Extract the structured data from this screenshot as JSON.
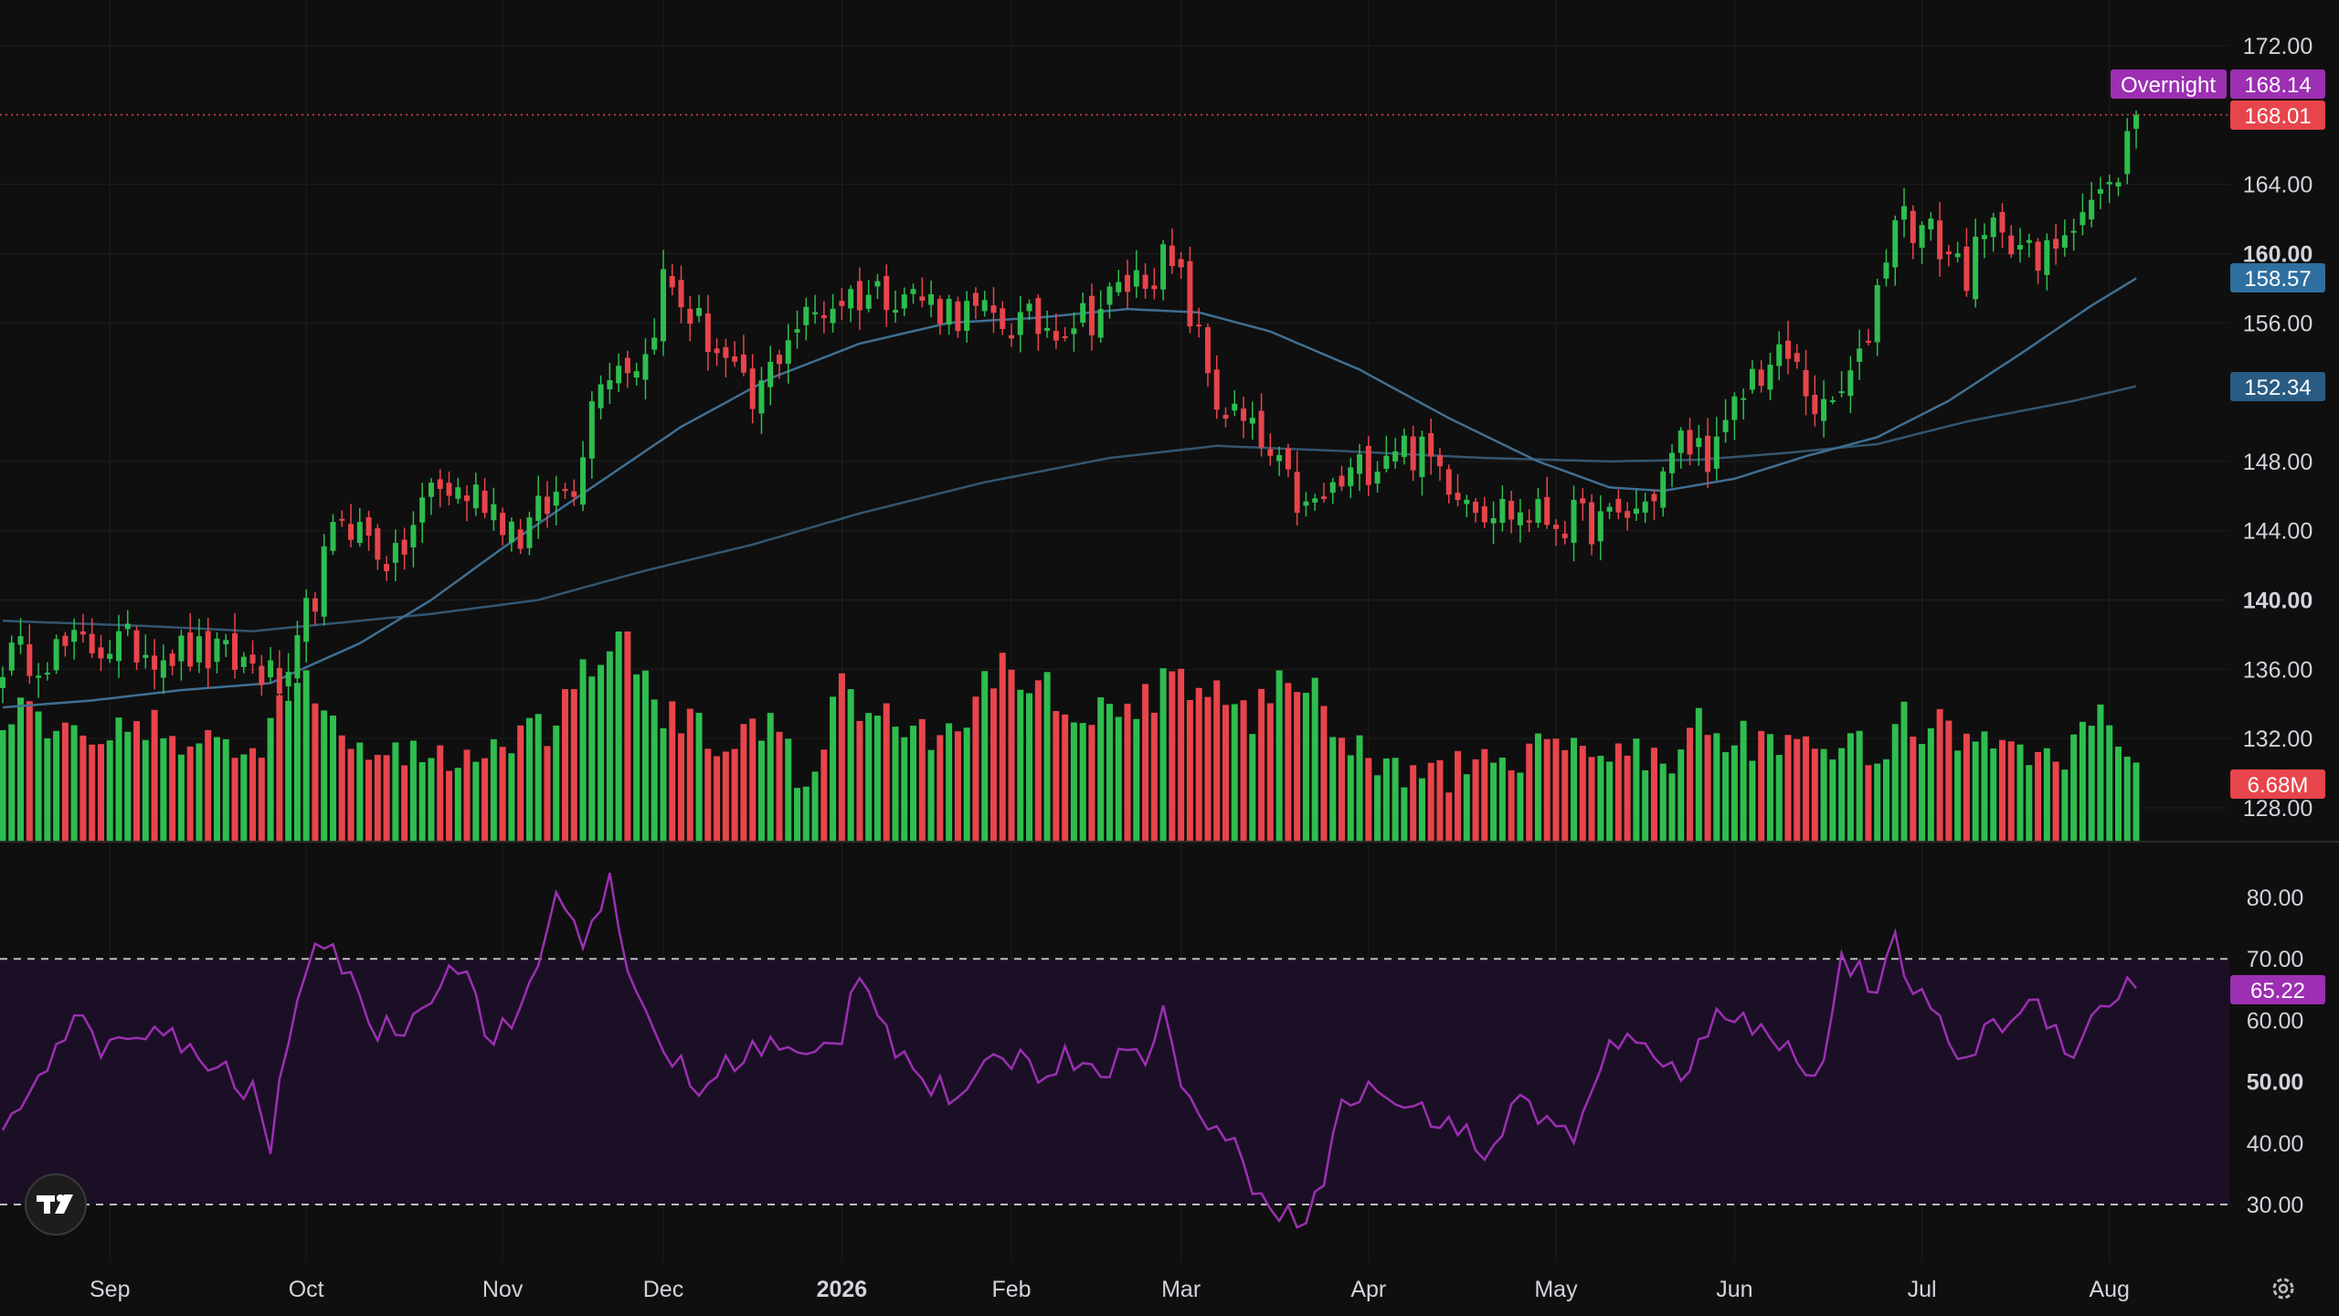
{
  "colors": {
    "background": "#0f0f0f",
    "grid": "#1e1e1e",
    "up": "#2ebd4e",
    "down": "#e8444b",
    "ma_short": "#3f6f93",
    "ma_long": "#33566f",
    "rsi_line": "#9c2fb2",
    "rsi_band": "#1b0f25",
    "axis_text": "#d1d4dc",
    "overnight_tag": "#9c2fb2",
    "last_price_tag": "#e8444b",
    "ma_short_tag": "#2e6fa0",
    "ma_long_tag": "#2a5c83",
    "volume_tag": "#e8444b",
    "rsi_tag": "#9c2fb2"
  },
  "chart_data": {
    "type": "candlestick",
    "price_axis": {
      "range": [
        126,
        173
      ],
      "ticks": [
        {
          "value": 172,
          "label": "172.00",
          "bold": false
        },
        {
          "value": 164,
          "label": "164.00",
          "bold": false
        },
        {
          "value": 160,
          "label": "160.00",
          "bold": true
        },
        {
          "value": 156,
          "label": "156.00",
          "bold": false
        },
        {
          "value": 148,
          "label": "148.00",
          "bold": false
        },
        {
          "value": 144,
          "label": "144.00",
          "bold": false
        },
        {
          "value": 140,
          "label": "140.00",
          "bold": true
        },
        {
          "value": 136,
          "label": "136.00",
          "bold": false
        },
        {
          "value": 132,
          "label": "132.00",
          "bold": false
        },
        {
          "value": 128,
          "label": "128.00",
          "bold": false
        }
      ]
    },
    "time_axis": {
      "labels": [
        {
          "label": "Sep",
          "bar": 12,
          "bold": false
        },
        {
          "label": "Oct",
          "bar": 34,
          "bold": false
        },
        {
          "label": "Nov",
          "bar": 56,
          "bold": false
        },
        {
          "label": "Dec",
          "bar": 74,
          "bold": false
        },
        {
          "label": "2026",
          "bar": 94,
          "bold": true
        },
        {
          "label": "Feb",
          "bar": 113,
          "bold": false
        },
        {
          "label": "Mar",
          "bar": 132,
          "bold": false
        },
        {
          "label": "Apr",
          "bar": 153,
          "bold": false
        },
        {
          "label": "May",
          "bar": 174,
          "bold": false
        },
        {
          "label": "Jun",
          "bar": 194,
          "bold": false
        },
        {
          "label": "Jul",
          "bar": 215,
          "bold": false
        },
        {
          "label": "Aug",
          "bar": 236,
          "bold": false
        }
      ]
    },
    "tags": {
      "overnight_label": "Overnight",
      "overnight_price": "168.14",
      "overnight_value": 168.14,
      "last_price": "168.01",
      "last_value": 168.01,
      "ma_short": "158.57",
      "ma_short_value": 158.57,
      "ma_long": "152.34",
      "ma_long_value": 152.34,
      "volume": "6.68M",
      "rsi": "65.22",
      "rsi_value": 65.22
    },
    "close_path": [
      [
        0,
        136.6
      ],
      [
        12,
        137.5
      ],
      [
        20,
        137.0
      ],
      [
        28,
        136.3
      ],
      [
        32,
        134.6
      ],
      [
        34,
        139.0
      ],
      [
        38,
        145.0
      ],
      [
        44,
        142.0
      ],
      [
        48,
        146.5
      ],
      [
        54,
        146.0
      ],
      [
        58,
        143.8
      ],
      [
        64,
        147.0
      ],
      [
        67,
        153.5
      ],
      [
        72,
        154.0
      ],
      [
        74,
        158.5
      ],
      [
        80,
        154.5
      ],
      [
        84,
        151.0
      ],
      [
        88,
        155.5
      ],
      [
        94,
        157.5
      ],
      [
        100,
        158.0
      ],
      [
        104,
        157.2
      ],
      [
        110,
        156.2
      ],
      [
        116,
        155.8
      ],
      [
        122,
        156.5
      ],
      [
        126,
        158.2
      ],
      [
        130,
        159.5
      ],
      [
        132,
        158.2
      ],
      [
        136,
        151.5
      ],
      [
        140,
        149.5
      ],
      [
        146,
        145.0
      ],
      [
        152,
        147.5
      ],
      [
        156,
        149.2
      ],
      [
        160,
        148.0
      ],
      [
        166,
        145.5
      ],
      [
        170,
        145.0
      ],
      [
        176,
        144.5
      ],
      [
        180,
        144.4
      ],
      [
        184,
        145.5
      ],
      [
        188,
        149.0
      ],
      [
        192,
        148.5
      ],
      [
        196,
        153.0
      ],
      [
        200,
        154.0
      ],
      [
        204,
        150.5
      ],
      [
        208,
        153.5
      ],
      [
        212,
        162.5
      ],
      [
        216,
        161.0
      ],
      [
        220,
        159.0
      ],
      [
        224,
        162.0
      ],
      [
        228,
        159.0
      ],
      [
        232,
        162.5
      ],
      [
        236,
        163.5
      ],
      [
        239,
        168.01
      ]
    ],
    "ma_short_path": [
      [
        0,
        133.8
      ],
      [
        10,
        134.2
      ],
      [
        20,
        134.8
      ],
      [
        30,
        135.2
      ],
      [
        40,
        137.5
      ],
      [
        48,
        140.0
      ],
      [
        56,
        143.0
      ],
      [
        66,
        146.5
      ],
      [
        76,
        150.0
      ],
      [
        86,
        152.8
      ],
      [
        96,
        154.8
      ],
      [
        106,
        156.0
      ],
      [
        116,
        156.3
      ],
      [
        126,
        156.8
      ],
      [
        134,
        156.6
      ],
      [
        142,
        155.5
      ],
      [
        152,
        153.3
      ],
      [
        162,
        150.5
      ],
      [
        172,
        148.0
      ],
      [
        180,
        146.5
      ],
      [
        186,
        146.3
      ],
      [
        194,
        147.0
      ],
      [
        202,
        148.3
      ],
      [
        210,
        149.4
      ],
      [
        218,
        151.5
      ],
      [
        226,
        154.2
      ],
      [
        234,
        157.0
      ],
      [
        239,
        158.57
      ]
    ],
    "ma_long_path": [
      [
        0,
        138.8
      ],
      [
        16,
        138.5
      ],
      [
        28,
        138.2
      ],
      [
        36,
        138.6
      ],
      [
        48,
        139.2
      ],
      [
        60,
        140.0
      ],
      [
        72,
        141.7
      ],
      [
        84,
        143.2
      ],
      [
        96,
        145.0
      ],
      [
        110,
        146.8
      ],
      [
        124,
        148.2
      ],
      [
        136,
        148.9
      ],
      [
        150,
        148.6
      ],
      [
        166,
        148.2
      ],
      [
        180,
        148.0
      ],
      [
        190,
        148.1
      ],
      [
        200,
        148.5
      ],
      [
        210,
        149.0
      ],
      [
        220,
        150.3
      ],
      [
        232,
        151.5
      ],
      [
        239,
        152.34
      ]
    ],
    "volume_levels": [
      [
        0,
        0.62
      ],
      [
        12,
        0.55
      ],
      [
        20,
        0.5
      ],
      [
        28,
        0.42
      ],
      [
        33,
        0.8
      ],
      [
        38,
        0.48
      ],
      [
        44,
        0.42
      ],
      [
        50,
        0.4
      ],
      [
        56,
        0.42
      ],
      [
        62,
        0.55
      ],
      [
        66,
        0.85
      ],
      [
        70,
        0.95
      ],
      [
        74,
        0.6
      ],
      [
        80,
        0.48
      ],
      [
        86,
        0.52
      ],
      [
        90,
        0.28
      ],
      [
        94,
        0.7
      ],
      [
        100,
        0.55
      ],
      [
        106,
        0.5
      ],
      [
        112,
        0.85
      ],
      [
        118,
        0.7
      ],
      [
        124,
        0.58
      ],
      [
        130,
        0.75
      ],
      [
        134,
        0.7
      ],
      [
        140,
        0.62
      ],
      [
        146,
        0.8
      ],
      [
        150,
        0.5
      ],
      [
        156,
        0.3
      ],
      [
        162,
        0.32
      ],
      [
        168,
        0.35
      ],
      [
        174,
        0.45
      ],
      [
        180,
        0.48
      ],
      [
        186,
        0.38
      ],
      [
        190,
        0.55
      ],
      [
        196,
        0.45
      ],
      [
        200,
        0.4
      ],
      [
        206,
        0.42
      ],
      [
        210,
        0.45
      ],
      [
        214,
        0.6
      ],
      [
        220,
        0.45
      ],
      [
        226,
        0.38
      ],
      [
        230,
        0.32
      ],
      [
        234,
        0.55
      ],
      [
        236,
        0.6
      ],
      [
        239,
        0.28
      ]
    ],
    "rsi": {
      "axis_ticks": [
        {
          "value": 80,
          "label": "80.00",
          "bold": false
        },
        {
          "value": 70,
          "label": "70.00",
          "bold": false
        },
        {
          "value": 60,
          "label": "60.00",
          "bold": false
        },
        {
          "value": 50,
          "label": "50.00",
          "bold": true
        },
        {
          "value": 40,
          "label": "40.00",
          "bold": false
        },
        {
          "value": 30,
          "label": "30.00",
          "bold": false
        }
      ],
      "upper_band": 70,
      "lower_band": 30,
      "path": [
        [
          0,
          40
        ],
        [
          4,
          52
        ],
        [
          8,
          60
        ],
        [
          12,
          55
        ],
        [
          16,
          58
        ],
        [
          20,
          56
        ],
        [
          24,
          52
        ],
        [
          28,
          48
        ],
        [
          30,
          39
        ],
        [
          32,
          58
        ],
        [
          34,
          70
        ],
        [
          38,
          70
        ],
        [
          42,
          58
        ],
        [
          46,
          60
        ],
        [
          50,
          70
        ],
        [
          52,
          68
        ],
        [
          54,
          58
        ],
        [
          58,
          60
        ],
        [
          62,
          80
        ],
        [
          65,
          74
        ],
        [
          68,
          82
        ],
        [
          70,
          66
        ],
        [
          74,
          56
        ],
        [
          78,
          48
        ],
        [
          82,
          54
        ],
        [
          86,
          56
        ],
        [
          90,
          53
        ],
        [
          94,
          58
        ],
        [
          96,
          69
        ],
        [
          100,
          56
        ],
        [
          104,
          49
        ],
        [
          108,
          47
        ],
        [
          112,
          55
        ],
        [
          116,
          52
        ],
        [
          120,
          54
        ],
        [
          124,
          53
        ],
        [
          128,
          55
        ],
        [
          130,
          62
        ],
        [
          132,
          48
        ],
        [
          136,
          43
        ],
        [
          140,
          34
        ],
        [
          144,
          28
        ],
        [
          147,
          30
        ],
        [
          150,
          46
        ],
        [
          154,
          49
        ],
        [
          158,
          45
        ],
        [
          162,
          44
        ],
        [
          166,
          38
        ],
        [
          170,
          47
        ],
        [
          174,
          43
        ],
        [
          176,
          40
        ],
        [
          180,
          55
        ],
        [
          184,
          58
        ],
        [
          188,
          49
        ],
        [
          192,
          63
        ],
        [
          196,
          59
        ],
        [
          200,
          55
        ],
        [
          204,
          52
        ],
        [
          206,
          71
        ],
        [
          210,
          64
        ],
        [
          212,
          72
        ],
        [
          216,
          60
        ],
        [
          220,
          54
        ],
        [
          224,
          60
        ],
        [
          228,
          63
        ],
        [
          232,
          55
        ],
        [
          236,
          64
        ],
        [
          239,
          65.22
        ]
      ]
    }
  }
}
